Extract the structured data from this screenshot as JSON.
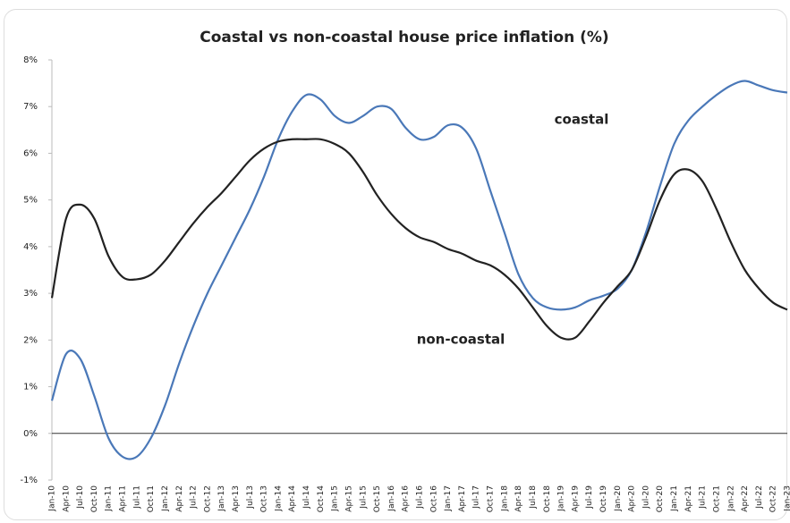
{
  "chart_data": {
    "type": "line",
    "title": "Coastal vs non-coastal house price inflation (%)",
    "categories": [
      "Jan-10",
      "Apr-10",
      "Jul-10",
      "Oct-10",
      "Jan-11",
      "Apr-11",
      "Jul-11",
      "Oct-11",
      "Jan-12",
      "Apr-12",
      "Jul-12",
      "Oct-12",
      "Jan-13",
      "Apr-13",
      "Jul-13",
      "Oct-13",
      "Jan-14",
      "Apr-14",
      "Jul-14",
      "Oct-14",
      "Jan-15",
      "Apr-15",
      "Jul-15",
      "Oct-15",
      "Jan-16",
      "Apr-16",
      "Jul-16",
      "Oct-16",
      "Jan-17",
      "Apr-17",
      "Jul-17",
      "Oct-17",
      "Jan-18",
      "Apr-18",
      "Jul-18",
      "Oct-18",
      "Jan-19",
      "Apr-19",
      "Jul-19",
      "Oct-19",
      "Jan-20",
      "Apr-20",
      "Jul-20",
      "Oct-20",
      "Jan-21",
      "Apr-21",
      "Jul-21",
      "Oct-21",
      "Jan-22",
      "Apr-22",
      "Jul-22",
      "Oct-22",
      "Jan-23"
    ],
    "series": [
      {
        "name": "coastal",
        "color": "#4a78b8",
        "values": [
          0.7,
          1.7,
          1.6,
          0.8,
          -0.1,
          -0.5,
          -0.5,
          -0.1,
          0.6,
          1.5,
          2.3,
          3.0,
          3.6,
          4.2,
          4.8,
          5.5,
          6.3,
          6.9,
          7.25,
          7.15,
          6.8,
          6.65,
          6.8,
          7.0,
          6.95,
          6.55,
          6.3,
          6.35,
          6.6,
          6.55,
          6.1,
          5.2,
          4.3,
          3.4,
          2.9,
          2.7,
          2.65,
          2.7,
          2.85,
          2.95,
          3.1,
          3.5,
          4.3,
          5.3,
          6.2,
          6.7,
          7.0,
          7.25,
          7.45,
          7.55,
          7.45,
          7.35,
          7.3
        ]
      },
      {
        "name": "non-coastal",
        "color": "#222222",
        "values": [
          2.9,
          4.6,
          4.9,
          4.6,
          3.8,
          3.35,
          3.3,
          3.4,
          3.7,
          4.1,
          4.5,
          4.85,
          5.15,
          5.5,
          5.85,
          6.1,
          6.25,
          6.3,
          6.3,
          6.3,
          6.2,
          6.0,
          5.6,
          5.1,
          4.7,
          4.4,
          4.2,
          4.1,
          3.95,
          3.85,
          3.7,
          3.6,
          3.4,
          3.1,
          2.7,
          2.3,
          2.05,
          2.05,
          2.4,
          2.8,
          3.15,
          3.5,
          4.2,
          5.0,
          5.55,
          5.65,
          5.4,
          4.8,
          4.1,
          3.5,
          3.1,
          2.8,
          2.65
        ]
      }
    ],
    "ylim": [
      -1,
      8
    ],
    "yticks": [
      {
        "value": -1,
        "label": "-1%"
      },
      {
        "value": 0,
        "label": "0%"
      },
      {
        "value": 1,
        "label": "1%"
      },
      {
        "value": 2,
        "label": "2%"
      },
      {
        "value": 3,
        "label": "3%"
      },
      {
        "value": 4,
        "label": "4%"
      },
      {
        "value": 5,
        "label": "5%"
      },
      {
        "value": 6,
        "label": "6%"
      },
      {
        "value": 7,
        "label": "7%"
      },
      {
        "value": 8,
        "label": "8%"
      }
    ],
    "grid": false
  }
}
